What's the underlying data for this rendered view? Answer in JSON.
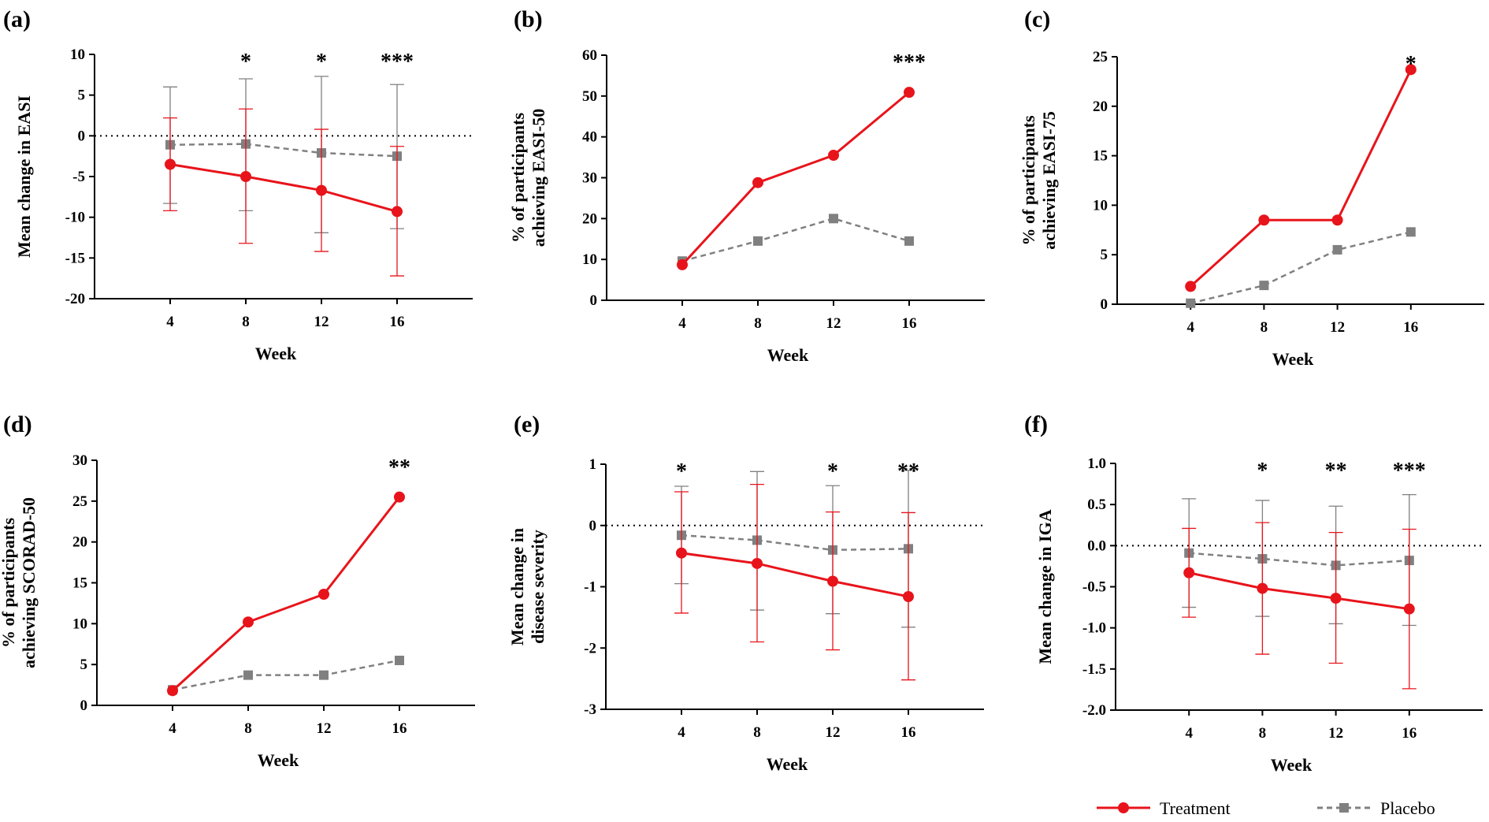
{
  "colors": {
    "treatment": "#e8141b",
    "placebo": "#808080",
    "axis": "#000000"
  },
  "legend": {
    "treatment_label": "Treatment",
    "placebo_label": "Placebo"
  },
  "chart_data": [
    {
      "panel": "(a)",
      "type": "line",
      "xlabel": "Week",
      "ylabel": [
        "Mean change in EASI"
      ],
      "x": [
        4,
        8,
        12,
        16
      ],
      "xlim": [
        0,
        20
      ],
      "ylim": [
        -20,
        10
      ],
      "yticks": [
        "10",
        "5",
        "0",
        "-5",
        "-10",
        "-15",
        "-20"
      ],
      "ytick_values": [
        10,
        5,
        0,
        -5,
        -10,
        -15,
        -20
      ],
      "zero_line": true,
      "series": [
        {
          "name": "Treatment",
          "values": [
            -3.5,
            -5.0,
            -6.7,
            -9.3
          ],
          "err_low": [
            -9.2,
            -13.2,
            -14.2,
            -17.2
          ],
          "err_high": [
            2.2,
            3.3,
            0.8,
            -1.3
          ]
        },
        {
          "name": "Placebo",
          "values": [
            -1.1,
            -1.0,
            -2.1,
            -2.5
          ],
          "err_low": [
            -8.3,
            -9.2,
            -11.9,
            -11.4
          ],
          "err_high": [
            6.0,
            7.0,
            7.3,
            6.3
          ]
        }
      ],
      "significance": [
        {
          "x": 8,
          "label": "*"
        },
        {
          "x": 12,
          "label": "*"
        },
        {
          "x": 16,
          "label": "***"
        }
      ]
    },
    {
      "panel": "(b)",
      "type": "line",
      "xlabel": "Week",
      "ylabel": [
        "% of participants",
        "achieving EASI-50"
      ],
      "x": [
        4,
        8,
        12,
        16
      ],
      "xlim": [
        0,
        20
      ],
      "ylim": [
        0,
        60
      ],
      "yticks": [
        "60",
        "50",
        "40",
        "30",
        "20",
        "10",
        "0"
      ],
      "ytick_values": [
        60,
        50,
        40,
        30,
        20,
        10,
        0
      ],
      "zero_line": false,
      "series": [
        {
          "name": "Treatment",
          "values": [
            8.7,
            28.8,
            35.5,
            50.9
          ]
        },
        {
          "name": "Placebo",
          "values": [
            9.6,
            14.5,
            20.0,
            14.5
          ]
        }
      ],
      "significance": [
        {
          "x": 16,
          "label": "***"
        }
      ]
    },
    {
      "panel": "(c)",
      "type": "line",
      "xlabel": "Week",
      "ylabel": [
        "% of participants",
        "achieving EASI-75"
      ],
      "x": [
        4,
        8,
        12,
        16
      ],
      "xlim": [
        0,
        20
      ],
      "ylim": [
        0,
        25
      ],
      "yticks": [
        "25",
        "20",
        "15",
        "10",
        "5",
        "0"
      ],
      "ytick_values": [
        25,
        20,
        15,
        10,
        5,
        0
      ],
      "zero_line": false,
      "series": [
        {
          "name": "Treatment",
          "values": [
            1.8,
            8.5,
            8.5,
            23.7
          ]
        },
        {
          "name": "Placebo",
          "values": [
            0.1,
            1.9,
            5.5,
            7.3
          ]
        }
      ],
      "significance": [
        {
          "x": 16,
          "label": "*"
        }
      ]
    },
    {
      "panel": "(d)",
      "type": "line",
      "xlabel": "Week",
      "ylabel": [
        "% of participants",
        "achieving SCORAD-50"
      ],
      "x": [
        4,
        8,
        12,
        16
      ],
      "xlim": [
        0,
        20
      ],
      "ylim": [
        0,
        30
      ],
      "yticks": [
        "30",
        "25",
        "20",
        "15",
        "10",
        "5",
        "0"
      ],
      "ytick_values": [
        30,
        25,
        20,
        15,
        10,
        5,
        0
      ],
      "zero_line": false,
      "series": [
        {
          "name": "Treatment",
          "values": [
            1.8,
            10.2,
            13.6,
            25.5
          ]
        },
        {
          "name": "Placebo",
          "values": [
            1.9,
            3.7,
            3.7,
            5.5
          ]
        }
      ],
      "significance": [
        {
          "x": 16,
          "label": "**"
        }
      ]
    },
    {
      "panel": "(e)",
      "type": "line",
      "xlabel": "Week",
      "ylabel": [
        "Mean change in",
        "disease severity"
      ],
      "x": [
        4,
        8,
        12,
        16
      ],
      "xlim": [
        0,
        20
      ],
      "ylim": [
        -3,
        1
      ],
      "yticks": [
        "1",
        "0",
        "-1",
        "-2",
        "-3"
      ],
      "ytick_values": [
        1,
        0,
        -1,
        -2,
        -3
      ],
      "zero_line": true,
      "series": [
        {
          "name": "Treatment",
          "values": [
            -0.45,
            -0.62,
            -0.91,
            -1.16
          ],
          "err_low": [
            -1.43,
            -1.9,
            -2.03,
            -2.52
          ],
          "err_high": [
            0.55,
            0.67,
            0.22,
            0.21
          ]
        },
        {
          "name": "Placebo",
          "values": [
            -0.16,
            -0.24,
            -0.4,
            -0.38
          ],
          "err_low": [
            -0.95,
            -1.38,
            -1.44,
            -1.66
          ],
          "err_high": [
            0.64,
            0.88,
            0.65,
            0.9
          ]
        }
      ],
      "significance": [
        {
          "x": 4,
          "label": "*"
        },
        {
          "x": 12,
          "label": "*"
        },
        {
          "x": 16,
          "label": "**"
        }
      ]
    },
    {
      "panel": "(f)",
      "type": "line",
      "xlabel": "Week",
      "ylabel": [
        "Mean change in IGA"
      ],
      "x": [
        4,
        8,
        12,
        16
      ],
      "xlim": [
        0,
        20
      ],
      "ylim": [
        -2.0,
        1.0
      ],
      "yticks": [
        "1.0",
        "0.5",
        "0.0",
        "-0.5",
        "-1.0",
        "-1.5",
        "-2.0"
      ],
      "ytick_values": [
        1.0,
        0.5,
        0.0,
        -0.5,
        -1.0,
        -1.5,
        -2.0
      ],
      "zero_line": true,
      "series": [
        {
          "name": "Treatment",
          "values": [
            -0.33,
            -0.52,
            -0.64,
            -0.77
          ],
          "err_low": [
            -0.87,
            -1.32,
            -1.43,
            -1.74
          ],
          "err_high": [
            0.21,
            0.28,
            0.16,
            0.2
          ]
        },
        {
          "name": "Placebo",
          "values": [
            -0.09,
            -0.16,
            -0.24,
            -0.18
          ],
          "err_low": [
            -0.75,
            -0.86,
            -0.95,
            -0.97
          ],
          "err_high": [
            0.57,
            0.55,
            0.48,
            0.62
          ]
        }
      ],
      "significance": [
        {
          "x": 8,
          "label": "*"
        },
        {
          "x": 12,
          "label": "**"
        },
        {
          "x": 16,
          "label": "***"
        }
      ]
    }
  ]
}
